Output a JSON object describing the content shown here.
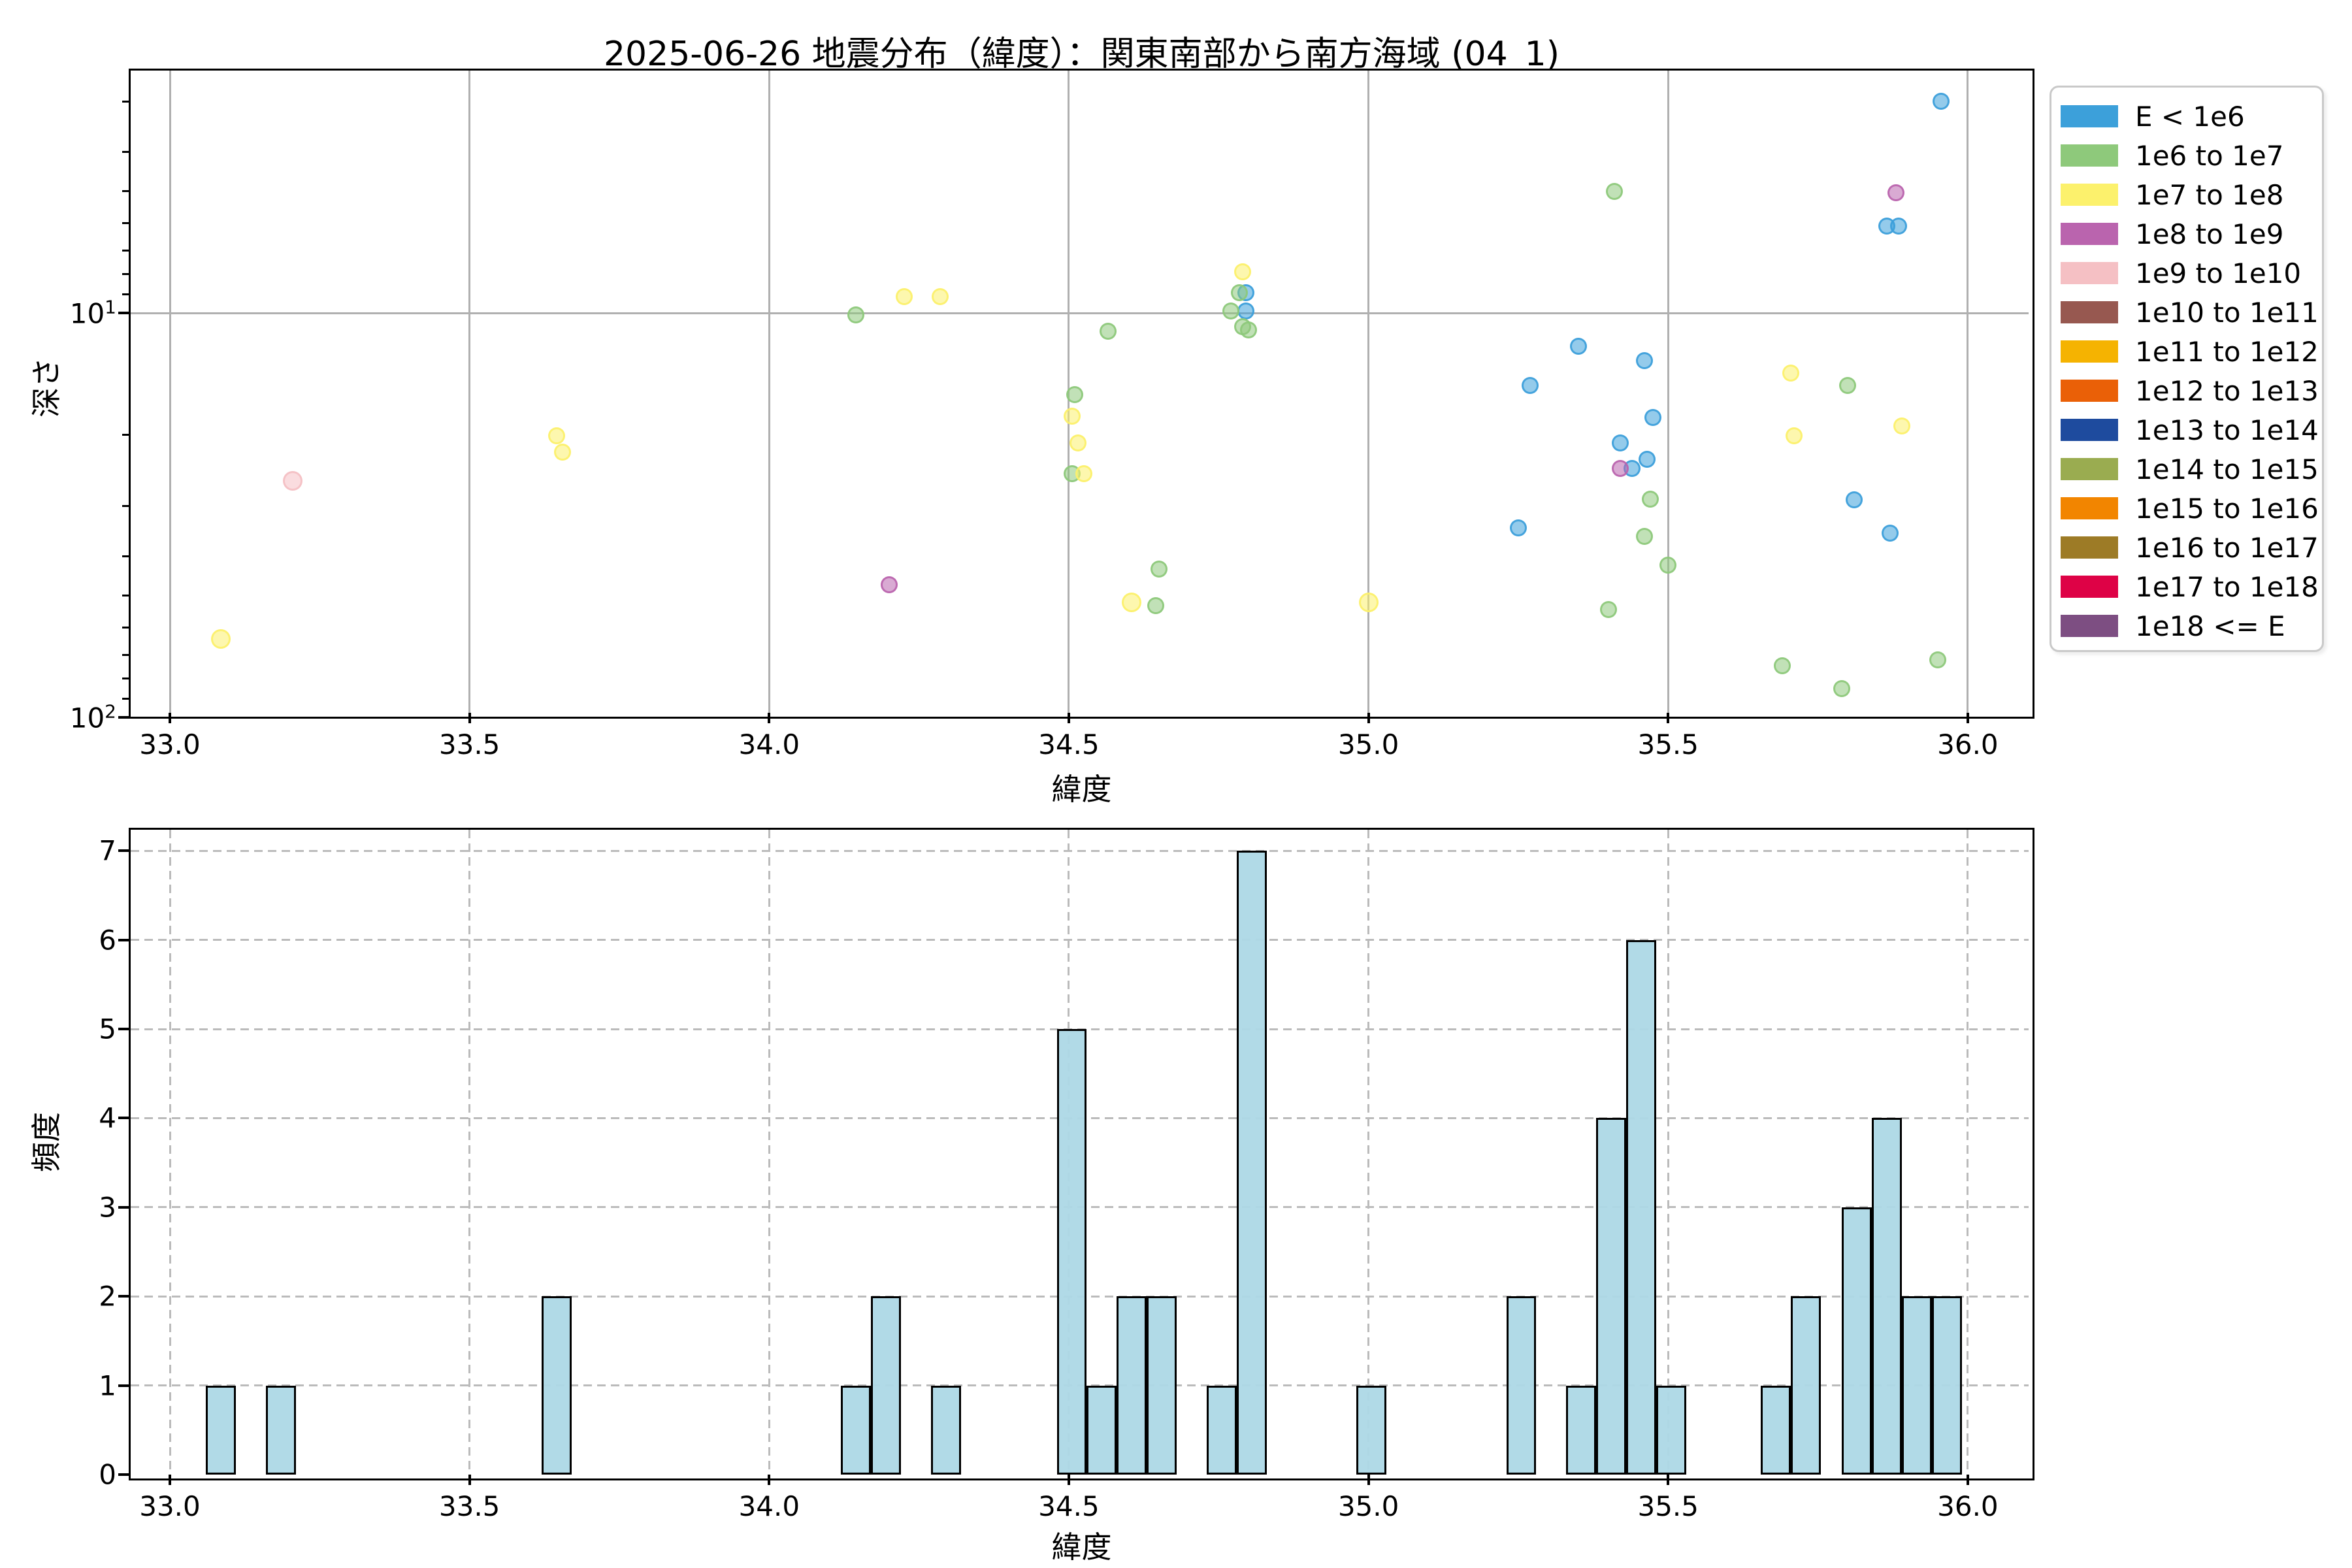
{
  "title": "2025-06-26 地震分布（緯度）：関東南部から南方海域 (04_1)",
  "legend": {
    "items": [
      {
        "label": "E < 1e6",
        "color": "#3CA0DA"
      },
      {
        "label": "1e6 to 1e7",
        "color": "#8EC97B"
      },
      {
        "label": "1e7 to 1e8",
        "color": "#FCF16C"
      },
      {
        "label": "1e8 to 1e9",
        "color": "#BA64AE"
      },
      {
        "label": "1e9 to 1e10",
        "color": "#F5C0C4"
      },
      {
        "label": "1e10 to 1e11",
        "color": "#975850"
      },
      {
        "label": "1e11 to 1e12",
        "color": "#F5B301"
      },
      {
        "label": "1e12 to 1e13",
        "color": "#EA6007"
      },
      {
        "label": "1e13 to 1e14",
        "color": "#1E4B9E"
      },
      {
        "label": "1e14 to 1e15",
        "color": "#9AAC50"
      },
      {
        "label": "1e15 to 1e16",
        "color": "#F28500"
      },
      {
        "label": "1e16 to 1e17",
        "color": "#9D7B26"
      },
      {
        "label": "1e17 to 1e18",
        "color": "#DE0246"
      },
      {
        "label": "1e18 <= E",
        "color": "#7D4E82"
      }
    ]
  },
  "chart_data": [
    {
      "type": "scatter",
      "title": "2025-06-26 地震分布（緯度）：関東南部から南方海域 (04_1)",
      "xlabel": "緯度",
      "ylabel": "深さ",
      "xlim": [
        32.93,
        36.11
      ],
      "yscale": "log",
      "y_inverted": true,
      "ylim_depth": [
        2.5,
        100
      ],
      "grid": "solid",
      "x_ticks": [
        {
          "label": "33.0",
          "value": 33.0
        },
        {
          "label": "33.5",
          "value": 33.5
        },
        {
          "label": "34.0",
          "value": 34.0
        },
        {
          "label": "34.5",
          "value": 34.5
        },
        {
          "label": "35.0",
          "value": 35.0
        },
        {
          "label": "35.5",
          "value": 35.5
        },
        {
          "label": "36.0",
          "value": 36.0
        }
      ],
      "y_ticks": [
        {
          "base": "10",
          "exp": "1",
          "value": 10
        },
        {
          "base": "10",
          "exp": "2",
          "value": 100
        }
      ],
      "y_minor_ticks": [
        3,
        4,
        5,
        6,
        7,
        8,
        9,
        20,
        30,
        40,
        50,
        60,
        70,
        80,
        90
      ],
      "series": [
        {
          "name": "E < 1e6",
          "color": "#3CA0DA",
          "points": [
            [
              34.795,
              8.9
            ],
            [
              34.795,
              9.9
            ],
            [
              35.25,
              34.0
            ],
            [
              35.27,
              15.1
            ],
            [
              35.35,
              12.1
            ],
            [
              35.42,
              21.0
            ],
            [
              35.44,
              24.2
            ],
            [
              35.46,
              13.1
            ],
            [
              35.465,
              23.0
            ],
            [
              35.475,
              18.1
            ],
            [
              35.81,
              29.0
            ],
            [
              35.865,
              6.1
            ],
            [
              35.885,
              6.1
            ],
            [
              35.87,
              35.0
            ],
            [
              35.955,
              3.0
            ]
          ]
        },
        {
          "name": "1e6 to 1e7",
          "color": "#8EC97B",
          "points": [
            [
              34.145,
              10.1
            ],
            [
              34.51,
              15.9
            ],
            [
              34.505,
              25.0
            ],
            [
              34.565,
              11.1
            ],
            [
              34.645,
              53.0
            ],
            [
              34.65,
              43.0
            ],
            [
              34.785,
              8.9
            ],
            [
              34.77,
              9.9
            ],
            [
              34.79,
              10.8
            ],
            [
              34.8,
              11.0
            ],
            [
              35.41,
              5.0
            ],
            [
              35.4,
              54.2
            ],
            [
              35.46,
              35.7
            ],
            [
              35.47,
              28.9
            ],
            [
              35.5,
              42.0
            ],
            [
              35.8,
              15.1
            ],
            [
              35.69,
              74.5
            ],
            [
              35.79,
              85.0
            ],
            [
              35.95,
              72.0
            ]
          ]
        },
        {
          "name": "1e7 to 1e8",
          "color": "#FCF16C",
          "points": [
            [
              33.085,
              64.0,
              24
            ],
            [
              33.645,
              20.1
            ],
            [
              33.655,
              22.1
            ],
            [
              34.225,
              9.1
            ],
            [
              34.285,
              9.1
            ],
            [
              34.505,
              18.0
            ],
            [
              34.515,
              21.0
            ],
            [
              34.525,
              25.0
            ],
            [
              34.605,
              52.0,
              24
            ],
            [
              34.79,
              7.9
            ],
            [
              35.0,
              52.0,
              24
            ],
            [
              35.705,
              14.1
            ],
            [
              35.71,
              20.1
            ],
            [
              35.89,
              19.0
            ]
          ]
        },
        {
          "name": "1e8 to 1e9",
          "color": "#BA64AE",
          "points": [
            [
              34.2,
              47.0
            ],
            [
              35.42,
              24.2
            ],
            [
              35.88,
              5.05
            ]
          ]
        },
        {
          "name": "1e9 to 1e10",
          "color": "#F5C0C4",
          "points": [
            [
              33.205,
              26.0,
              24
            ]
          ]
        }
      ]
    },
    {
      "type": "histogram",
      "xlabel": "緯度",
      "ylabel": "頻度",
      "grid": "dashed",
      "bar_color": "#ADD8E6",
      "bin_width": 0.05,
      "x_ticks": [
        {
          "label": "33.0",
          "value": 33.0
        },
        {
          "label": "33.5",
          "value": 33.5
        },
        {
          "label": "34.0",
          "value": 34.0
        },
        {
          "label": "34.5",
          "value": 34.5
        },
        {
          "label": "35.0",
          "value": 35.0
        },
        {
          "label": "35.5",
          "value": 35.5
        },
        {
          "label": "36.0",
          "value": 36.0
        }
      ],
      "y_ticks": [
        0,
        1,
        2,
        3,
        4,
        5,
        6,
        7
      ],
      "ylim": [
        0,
        7.28
      ],
      "bars": [
        {
          "x0": 33.06,
          "count": 1
        },
        {
          "x0": 33.16,
          "count": 1
        },
        {
          "x0": 33.62,
          "count": 2
        },
        {
          "x0": 34.12,
          "count": 1
        },
        {
          "x0": 34.17,
          "count": 2
        },
        {
          "x0": 34.27,
          "count": 1
        },
        {
          "x0": 34.48,
          "count": 5
        },
        {
          "x0": 34.53,
          "count": 1
        },
        {
          "x0": 34.58,
          "count": 2
        },
        {
          "x0": 34.63,
          "count": 2
        },
        {
          "x0": 34.73,
          "count": 1
        },
        {
          "x0": 34.78,
          "count": 7
        },
        {
          "x0": 34.98,
          "count": 1
        },
        {
          "x0": 35.23,
          "count": 2
        },
        {
          "x0": 35.33,
          "count": 1
        },
        {
          "x0": 35.38,
          "count": 4
        },
        {
          "x0": 35.43,
          "count": 6
        },
        {
          "x0": 35.48,
          "count": 1
        },
        {
          "x0": 35.655,
          "count": 1
        },
        {
          "x0": 35.705,
          "count": 2
        },
        {
          "x0": 35.79,
          "count": 3
        },
        {
          "x0": 35.84,
          "count": 4
        },
        {
          "x0": 35.89,
          "count": 2
        },
        {
          "x0": 35.94,
          "count": 2
        }
      ]
    }
  ]
}
